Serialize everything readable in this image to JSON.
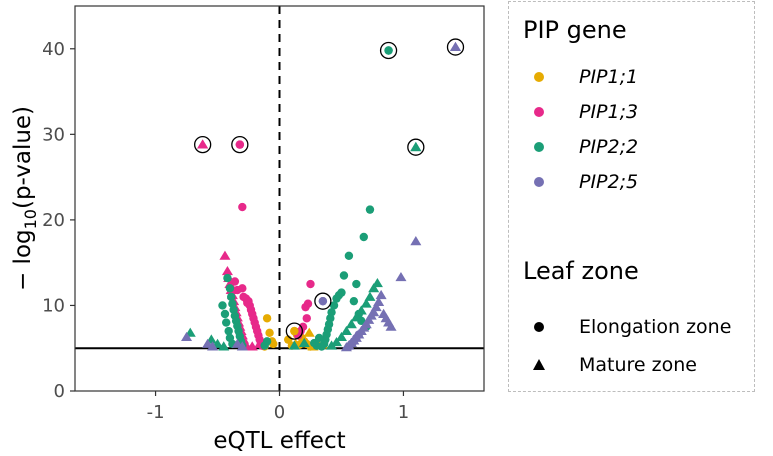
{
  "chart_data": {
    "type": "scatter",
    "xlabel": "eQTL effect",
    "ylabel": "-log10(p-value)",
    "xlim": [
      -1.65,
      1.65
    ],
    "ylim": [
      0,
      45
    ],
    "xticks": [
      "-1",
      "0",
      "1"
    ],
    "xtick_values": [
      -1,
      0,
      1
    ],
    "yticks": [
      "0",
      "10",
      "20",
      "30",
      "40"
    ],
    "ytick_values": [
      0,
      10,
      20,
      30,
      40
    ],
    "grid": false,
    "reference_lines": [
      {
        "orientation": "vertical",
        "value": 0,
        "style": "dashed"
      },
      {
        "orientation": "horizontal",
        "value": 5,
        "style": "solid"
      }
    ],
    "legend_position": "right",
    "legend": {
      "color_title": "PIP gene",
      "shape_title": "Leaf zone",
      "genes": [
        {
          "name": "PIP1;1",
          "color": "#E6AB02"
        },
        {
          "name": "PIP1;3",
          "color": "#E7298A"
        },
        {
          "name": "PIP2;2",
          "color": "#1B9E77"
        },
        {
          "name": "PIP2;5",
          "color": "#7570B3"
        }
      ],
      "zones": [
        {
          "name": "Elongation zone",
          "shape": "circle"
        },
        {
          "name": "Mature zone",
          "shape": "triangle"
        }
      ]
    },
    "series": [
      {
        "gene": "PIP1;1",
        "zone": "Elongation zone",
        "points": [
          [
            0.12,
            7.0
          ],
          [
            0.14,
            6.6
          ],
          [
            0.18,
            6.2
          ],
          [
            0.2,
            5.8
          ],
          [
            0.22,
            5.5
          ],
          [
            0.1,
            5.3
          ],
          [
            0.25,
            5.2
          ],
          [
            0.07,
            6.0
          ],
          [
            0.16,
            5.4
          ],
          [
            -0.06,
            5.8
          ],
          [
            -0.08,
            6.8
          ],
          [
            -0.1,
            8.5
          ],
          [
            -0.12,
            5.2
          ],
          [
            -0.05,
            5.5
          ]
        ]
      },
      {
        "gene": "PIP1;1",
        "zone": "Mature zone",
        "points": [
          [
            0.24,
            6.8
          ],
          [
            0.3,
            5.8
          ],
          [
            0.27,
            5.2
          ],
          [
            0.13,
            5.5
          ],
          [
            0.35,
            5.4
          ]
        ]
      },
      {
        "gene": "PIP1;3",
        "zone": "Elongation zone",
        "points": [
          [
            -0.32,
            28.8
          ],
          [
            -0.3,
            21.5
          ],
          [
            -0.25,
            10.5
          ],
          [
            -0.24,
            10.0
          ],
          [
            -0.23,
            9.5
          ],
          [
            -0.22,
            9.0
          ],
          [
            -0.21,
            8.5
          ],
          [
            -0.2,
            8.0
          ],
          [
            -0.19,
            7.5
          ],
          [
            -0.18,
            7.0
          ],
          [
            -0.17,
            6.5
          ],
          [
            -0.16,
            6.0
          ],
          [
            -0.15,
            5.6
          ],
          [
            -0.14,
            5.3
          ],
          [
            -0.3,
            12.0
          ],
          [
            -0.29,
            11.0
          ],
          [
            -0.27,
            10.8
          ],
          [
            -0.26,
            10.3
          ],
          [
            0.25,
            12.5
          ],
          [
            0.23,
            10.2
          ],
          [
            0.21,
            9.8
          ],
          [
            0.22,
            8.5
          ],
          [
            0.19,
            7.5
          ],
          [
            0.17,
            7.0
          ],
          [
            0.15,
            6.5
          ],
          [
            -0.36,
            12.8
          ],
          [
            -0.34,
            11.8
          ]
        ]
      },
      {
        "gene": "PIP1;3",
        "zone": "Mature zone",
        "points": [
          [
            -0.62,
            28.8
          ],
          [
            -0.44,
            15.8
          ],
          [
            -0.42,
            14.0
          ],
          [
            -0.41,
            13.2
          ],
          [
            -0.4,
            12.5
          ],
          [
            -0.39,
            11.8
          ],
          [
            -0.38,
            11.2
          ],
          [
            -0.37,
            10.5
          ],
          [
            -0.36,
            9.8
          ],
          [
            -0.35,
            9.2
          ],
          [
            -0.34,
            8.6
          ],
          [
            -0.33,
            8.0
          ],
          [
            -0.32,
            7.5
          ],
          [
            -0.31,
            7.0
          ],
          [
            -0.3,
            6.5
          ],
          [
            -0.29,
            6.0
          ],
          [
            -0.28,
            5.6
          ],
          [
            -0.27,
            5.3
          ],
          [
            -0.22,
            5.2
          ],
          [
            -0.16,
            5.5
          ]
        ]
      },
      {
        "gene": "PIP2;2",
        "zone": "Elongation zone",
        "points": [
          [
            0.88,
            39.8
          ],
          [
            0.73,
            21.2
          ],
          [
            0.68,
            18.0
          ],
          [
            0.56,
            15.8
          ],
          [
            0.52,
            13.5
          ],
          [
            0.5,
            11.5
          ],
          [
            0.46,
            10.8
          ],
          [
            0.44,
            10.0
          ],
          [
            0.42,
            9.2
          ],
          [
            0.41,
            8.5
          ],
          [
            0.4,
            7.8
          ],
          [
            0.39,
            7.2
          ],
          [
            0.38,
            6.6
          ],
          [
            0.37,
            6.0
          ],
          [
            0.36,
            5.5
          ],
          [
            0.34,
            5.2
          ],
          [
            0.3,
            5.3
          ],
          [
            0.28,
            5.6
          ],
          [
            0.32,
            6.2
          ],
          [
            0.48,
            11.2
          ],
          [
            -0.42,
            13.2
          ],
          [
            -0.4,
            12.0
          ],
          [
            -0.39,
            11.0
          ],
          [
            -0.38,
            10.2
          ],
          [
            -0.37,
            9.5
          ],
          [
            -0.36,
            8.8
          ],
          [
            -0.35,
            8.2
          ],
          [
            -0.34,
            7.6
          ],
          [
            -0.33,
            7.0
          ],
          [
            -0.32,
            6.4
          ],
          [
            -0.31,
            5.8
          ],
          [
            -0.3,
            5.3
          ],
          [
            -0.46,
            10.0
          ],
          [
            -0.44,
            9.0
          ],
          [
            -0.43,
            8.0
          ],
          [
            -0.41,
            7.0
          ],
          [
            -0.4,
            6.2
          ],
          [
            -0.38,
            5.5
          ],
          [
            -0.1,
            5.8
          ],
          [
            -0.12,
            5.3
          ],
          [
            0.62,
            12.5
          ],
          [
            0.6,
            10.5
          ],
          [
            0.64,
            9.0
          ],
          [
            0.66,
            8.2
          ],
          [
            0.7,
            7.5
          ]
        ]
      },
      {
        "gene": "PIP2;2",
        "zone": "Mature zone",
        "points": [
          [
            1.1,
            28.5
          ],
          [
            0.79,
            12.6
          ],
          [
            0.76,
            12.0
          ],
          [
            0.73,
            11.0
          ],
          [
            0.7,
            10.2
          ],
          [
            0.66,
            9.4
          ],
          [
            0.62,
            8.6
          ],
          [
            0.58,
            7.8
          ],
          [
            0.54,
            7.0
          ],
          [
            0.5,
            6.3
          ],
          [
            0.46,
            5.7
          ],
          [
            0.42,
            5.3
          ],
          [
            -0.55,
            6.0
          ],
          [
            -0.5,
            5.5
          ],
          [
            -0.45,
            5.2
          ],
          [
            -0.72,
            6.8
          ],
          [
            0.12,
            5.3
          ],
          [
            0.2,
            5.6
          ]
        ]
      },
      {
        "gene": "PIP2;5",
        "zone": "Elongation zone",
        "points": [
          [
            0.35,
            10.5
          ],
          [
            0.6,
            5.8
          ],
          [
            0.58,
            5.5
          ],
          [
            0.56,
            5.2
          ],
          [
            0.62,
            6.2
          ],
          [
            0.64,
            6.6
          ]
        ]
      },
      {
        "gene": "PIP2;5",
        "zone": "Mature zone",
        "points": [
          [
            1.42,
            40.2
          ],
          [
            1.1,
            17.5
          ],
          [
            0.98,
            13.3
          ],
          [
            0.82,
            11.2
          ],
          [
            0.8,
            10.4
          ],
          [
            0.78,
            9.8
          ],
          [
            0.76,
            9.2
          ],
          [
            0.74,
            8.8
          ],
          [
            0.72,
            8.3
          ],
          [
            0.7,
            7.8
          ],
          [
            0.68,
            7.4
          ],
          [
            0.66,
            7.0
          ],
          [
            0.64,
            6.6
          ],
          [
            0.62,
            6.2
          ],
          [
            0.6,
            5.9
          ],
          [
            0.58,
            5.6
          ],
          [
            0.56,
            5.3
          ],
          [
            0.54,
            5.1
          ],
          [
            0.84,
            9.0
          ],
          [
            0.86,
            8.5
          ],
          [
            0.88,
            8.0
          ],
          [
            0.9,
            7.5
          ],
          [
            -0.58,
            5.5
          ],
          [
            -0.54,
            5.2
          ],
          [
            -0.75,
            6.3
          ],
          [
            -0.34,
            5.5
          ],
          [
            -0.3,
            5.2
          ]
        ]
      }
    ],
    "highlighted_points": [
      {
        "gene": "PIP1;3",
        "zone": "Mature zone",
        "x": -0.62,
        "y": 28.8
      },
      {
        "gene": "PIP1;3",
        "zone": "Elongation zone",
        "x": -0.32,
        "y": 28.8
      },
      {
        "gene": "PIP2;2",
        "zone": "Elongation zone",
        "x": 0.88,
        "y": 39.8
      },
      {
        "gene": "PIP2;5",
        "zone": "Mature zone",
        "x": 1.42,
        "y": 40.2
      },
      {
        "gene": "PIP2;2",
        "zone": "Mature zone",
        "x": 1.1,
        "y": 28.5
      },
      {
        "gene": "PIP2;5",
        "zone": "Elongation zone",
        "x": 0.35,
        "y": 10.5
      },
      {
        "gene": "PIP1;1",
        "zone": "Elongation zone",
        "x": 0.12,
        "y": 7.0
      }
    ]
  }
}
